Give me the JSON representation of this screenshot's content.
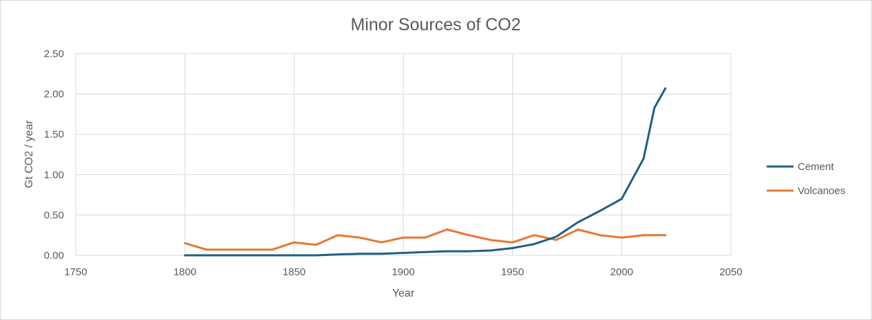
{
  "chart_data": {
    "type": "line",
    "title": "Minor Sources of CO2",
    "xlabel": "Year",
    "ylabel": "Gt CO2 / year",
    "xlim": [
      1750,
      2050
    ],
    "ylim": [
      0,
      2.5
    ],
    "xticks": [
      1750,
      1800,
      1850,
      1900,
      1950,
      2000,
      2050
    ],
    "yticks": [
      0,
      0.5,
      1.0,
      1.5,
      2.0,
      2.5
    ],
    "xtick_labels": [
      "1750",
      "1800",
      "1850",
      "1900",
      "1950",
      "2000",
      "2050"
    ],
    "ytick_labels": [
      "0.00",
      "0.50",
      "1.00",
      "1.50",
      "2.00",
      "2.50"
    ],
    "grid": true,
    "legend_position": "right",
    "series": [
      {
        "name": "Cement",
        "color": "#1f5f80",
        "x": [
          1800,
          1810,
          1820,
          1830,
          1840,
          1850,
          1860,
          1870,
          1880,
          1890,
          1900,
          1910,
          1920,
          1930,
          1940,
          1950,
          1960,
          1970,
          1980,
          1990,
          2000,
          2010,
          2015,
          2020
        ],
        "y": [
          0.0,
          0.0,
          0.0,
          0.0,
          0.0,
          0.0,
          0.0,
          0.01,
          0.02,
          0.02,
          0.03,
          0.04,
          0.05,
          0.05,
          0.06,
          0.09,
          0.14,
          0.23,
          0.41,
          0.55,
          0.7,
          1.2,
          1.83,
          2.07
        ]
      },
      {
        "name": "Volcanoes",
        "color": "#e87732",
        "x": [
          1800,
          1810,
          1820,
          1830,
          1840,
          1850,
          1860,
          1870,
          1880,
          1890,
          1900,
          1910,
          1920,
          1930,
          1940,
          1950,
          1960,
          1970,
          1980,
          1990,
          2000,
          2010,
          2020
        ],
        "y": [
          0.15,
          0.07,
          0.07,
          0.07,
          0.07,
          0.16,
          0.13,
          0.25,
          0.22,
          0.16,
          0.22,
          0.22,
          0.32,
          0.25,
          0.19,
          0.16,
          0.25,
          0.19,
          0.32,
          0.25,
          0.22,
          0.25,
          0.25
        ]
      }
    ]
  }
}
